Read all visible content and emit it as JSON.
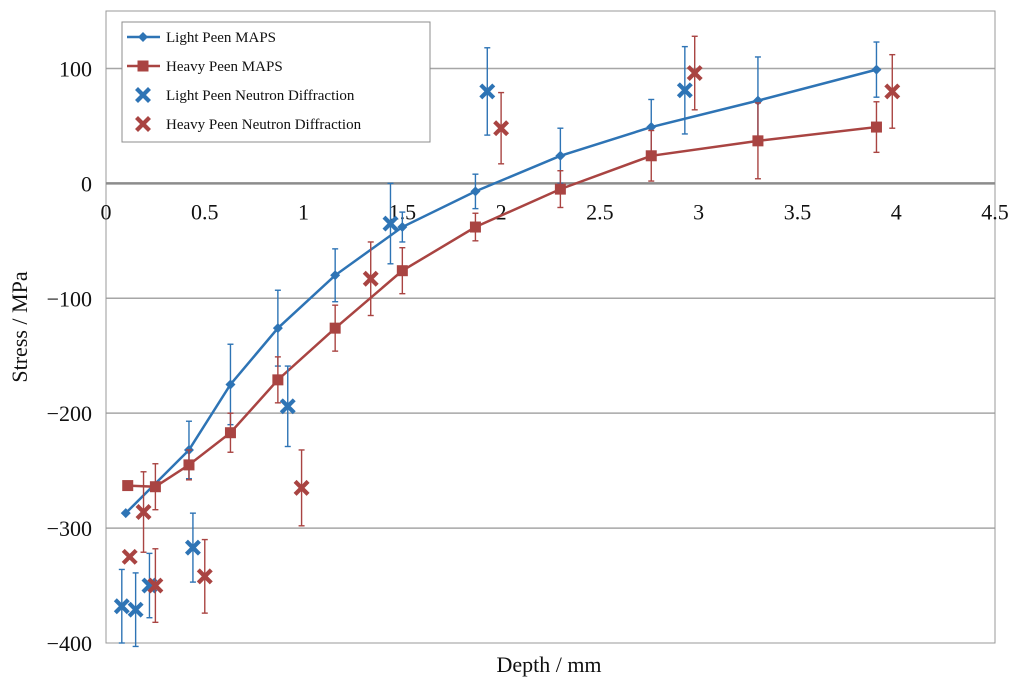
{
  "chart_data": {
    "type": "scatter",
    "title": "",
    "xlabel": "Depth / mm",
    "ylabel": "Stress / MPa",
    "xlim": [
      0,
      4.5
    ],
    "ylim": [
      -400,
      150
    ],
    "x_ticks": [
      "0",
      "0.5",
      "1",
      "1.5",
      "2",
      "2.5",
      "3",
      "3.5",
      "4",
      "4.5"
    ],
    "x_tick_values": [
      0,
      0.5,
      1,
      1.5,
      2,
      2.5,
      3,
      3.5,
      4,
      4.5
    ],
    "y_ticks": [
      "100",
      "0",
      "−100",
      "−200",
      "−300",
      "−400"
    ],
    "y_tick_values": [
      100,
      0,
      -100,
      -200,
      -300,
      -400
    ],
    "grid": "horizontal",
    "legend_position": "top-left",
    "series": [
      {
        "name": "Light Peen MAPS",
        "color": "#2e74b5",
        "marker": "diamond",
        "line": true,
        "points": [
          {
            "x": 0.1,
            "y": -287,
            "err": 0
          },
          {
            "x": 0.42,
            "y": -232,
            "err": 25
          },
          {
            "x": 0.63,
            "y": -175,
            "err": 35
          },
          {
            "x": 0.87,
            "y": -126,
            "err": 33
          },
          {
            "x": 1.16,
            "y": -80,
            "err": 23
          },
          {
            "x": 1.5,
            "y": -38,
            "err": 13
          },
          {
            "x": 1.87,
            "y": -7,
            "err": 15
          },
          {
            "x": 2.3,
            "y": 24,
            "err": 24
          },
          {
            "x": 2.76,
            "y": 49,
            "err": 24
          },
          {
            "x": 3.3,
            "y": 72,
            "err": 38
          },
          {
            "x": 3.9,
            "y": 99,
            "err": 24
          }
        ]
      },
      {
        "name": "Heavy Peen MAPS",
        "color": "#a94442",
        "marker": "square",
        "line": true,
        "points": [
          {
            "x": 0.11,
            "y": -263,
            "err": 0
          },
          {
            "x": 0.25,
            "y": -264,
            "err": 20
          },
          {
            "x": 0.42,
            "y": -245,
            "err": 13
          },
          {
            "x": 0.63,
            "y": -217,
            "err": 17
          },
          {
            "x": 0.87,
            "y": -171,
            "err": 20
          },
          {
            "x": 1.16,
            "y": -126,
            "err": 20
          },
          {
            "x": 1.5,
            "y": -76,
            "err": 20
          },
          {
            "x": 1.87,
            "y": -38,
            "err": 12
          },
          {
            "x": 2.3,
            "y": -5,
            "err": 16
          },
          {
            "x": 2.76,
            "y": 24,
            "err": 22
          },
          {
            "x": 3.3,
            "y": 37,
            "err": 33
          },
          {
            "x": 3.9,
            "y": 49,
            "err": 22
          }
        ]
      },
      {
        "name": "Light Peen Neutron Diffraction",
        "color": "#2e74b5",
        "marker": "x",
        "line": false,
        "points": [
          {
            "x": 0.08,
            "y": -368,
            "err": 32
          },
          {
            "x": 0.15,
            "y": -371,
            "err": 32
          },
          {
            "x": 0.22,
            "y": -350,
            "err": 28
          },
          {
            "x": 0.44,
            "y": -317,
            "err": 30
          },
          {
            "x": 0.92,
            "y": -194,
            "err": 35
          },
          {
            "x": 1.44,
            "y": -35,
            "err": 35
          },
          {
            "x": 1.93,
            "y": 80,
            "err": 38
          },
          {
            "x": 2.93,
            "y": 81,
            "err": 38
          }
        ]
      },
      {
        "name": "Heavy Peen Neutron Diffraction",
        "color": "#a94442",
        "marker": "x",
        "line": false,
        "points": [
          {
            "x": 0.12,
            "y": -325,
            "err": 0
          },
          {
            "x": 0.19,
            "y": -286,
            "err": 35
          },
          {
            "x": 0.25,
            "y": -350,
            "err": 32
          },
          {
            "x": 0.5,
            "y": -342,
            "err": 32
          },
          {
            "x": 0.99,
            "y": -265,
            "err": 33
          },
          {
            "x": 1.34,
            "y": -83,
            "err": 32
          },
          {
            "x": 2.0,
            "y": 48,
            "err": 31
          },
          {
            "x": 2.98,
            "y": 96,
            "err": 32
          },
          {
            "x": 3.98,
            "y": 80,
            "err": 32
          }
        ]
      }
    ]
  }
}
